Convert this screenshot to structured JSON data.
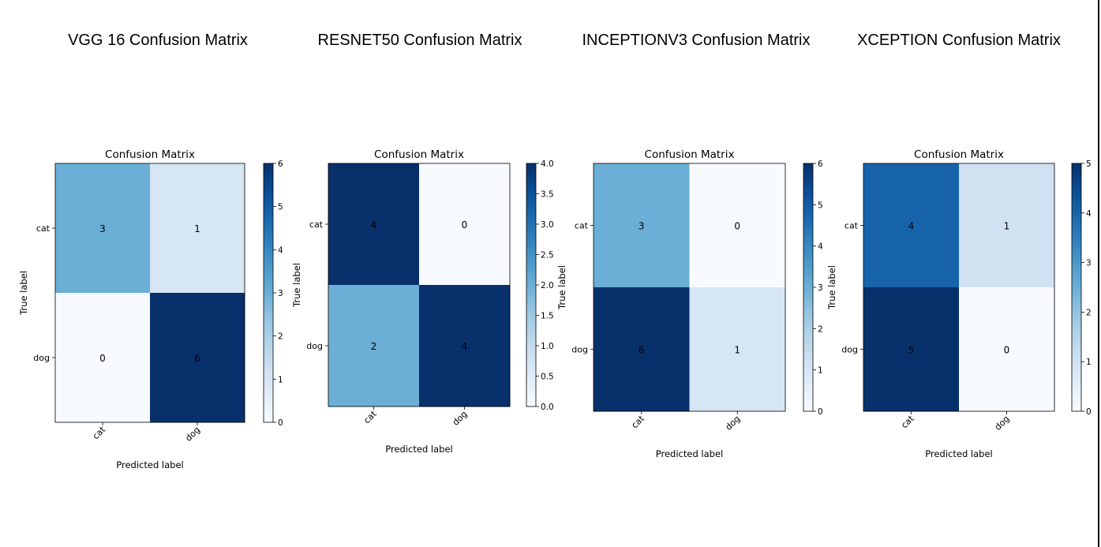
{
  "headings": [
    "VGG 16 Confusion Matrix",
    "RESNET50 Confusion Matrix",
    "INCEPTIONV3 Confusion Matrix",
    "XCEPTION Confusion Matrix"
  ],
  "colors": {
    "cmap_low": "#f7fbff",
    "cmap_high": "#08306b",
    "text_dark": "#000000",
    "text_light": "#ffffff"
  },
  "chart_data": [
    {
      "type": "heatmap",
      "title": "Confusion Matrix",
      "xlabel": "Predicted label",
      "ylabel": "True label",
      "x_categories": [
        "cat",
        "dog"
      ],
      "y_categories": [
        "cat",
        "dog"
      ],
      "values": [
        [
          3,
          1
        ],
        [
          0,
          6
        ]
      ],
      "colorbar": {
        "min": 0,
        "max": 6,
        "ticks": [
          "0",
          "1",
          "2",
          "3",
          "4",
          "5",
          "6"
        ]
      }
    },
    {
      "type": "heatmap",
      "title": "Confusion Matrix",
      "xlabel": "Predicted label",
      "ylabel": "True label",
      "x_categories": [
        "cat",
        "dog"
      ],
      "y_categories": [
        "cat",
        "dog"
      ],
      "values": [
        [
          4,
          0
        ],
        [
          2,
          4
        ]
      ],
      "colorbar": {
        "min": 0,
        "max": 4,
        "ticks": [
          "0.0",
          "0.5",
          "1.0",
          "1.5",
          "2.0",
          "2.5",
          "3.0",
          "3.5",
          "4.0"
        ]
      }
    },
    {
      "type": "heatmap",
      "title": "Confusion Matrix",
      "xlabel": "Predicted label",
      "ylabel": "True label",
      "x_categories": [
        "cat",
        "dog"
      ],
      "y_categories": [
        "cat",
        "dog"
      ],
      "values": [
        [
          3,
          0
        ],
        [
          6,
          1
        ]
      ],
      "colorbar": {
        "min": 0,
        "max": 6,
        "ticks": [
          "0",
          "1",
          "2",
          "3",
          "4",
          "5",
          "6"
        ]
      }
    },
    {
      "type": "heatmap",
      "title": "Confusion Matrix",
      "xlabel": "Predicted label",
      "ylabel": "True label",
      "x_categories": [
        "cat",
        "dog"
      ],
      "y_categories": [
        "cat",
        "dog"
      ],
      "values": [
        [
          4,
          1
        ],
        [
          5,
          0
        ]
      ],
      "colorbar": {
        "min": 0,
        "max": 5,
        "ticks": [
          "0",
          "1",
          "2",
          "3",
          "4",
          "5"
        ]
      }
    }
  ]
}
